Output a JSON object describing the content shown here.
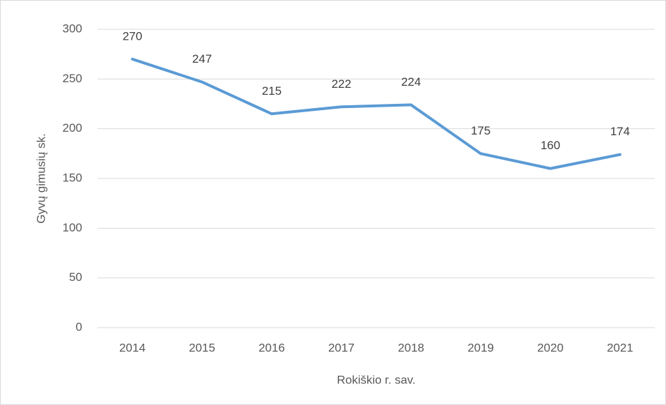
{
  "chart_data": {
    "type": "line",
    "categories": [
      "2014",
      "2015",
      "2016",
      "2017",
      "2018",
      "2019",
      "2020",
      "2021"
    ],
    "series": [
      {
        "name": "Gyvų gimusių sk.",
        "color": "#5b9bd5",
        "values": [
          270,
          247,
          215,
          222,
          224,
          175,
          160,
          174
        ]
      }
    ],
    "x_label": "Rokiškio r. sav.",
    "y_label": "Gyvų gimusių sk.",
    "ylim": [
      0,
      300
    ],
    "yticks": [
      0,
      50,
      100,
      150,
      200,
      250,
      300
    ],
    "grid": true
  }
}
